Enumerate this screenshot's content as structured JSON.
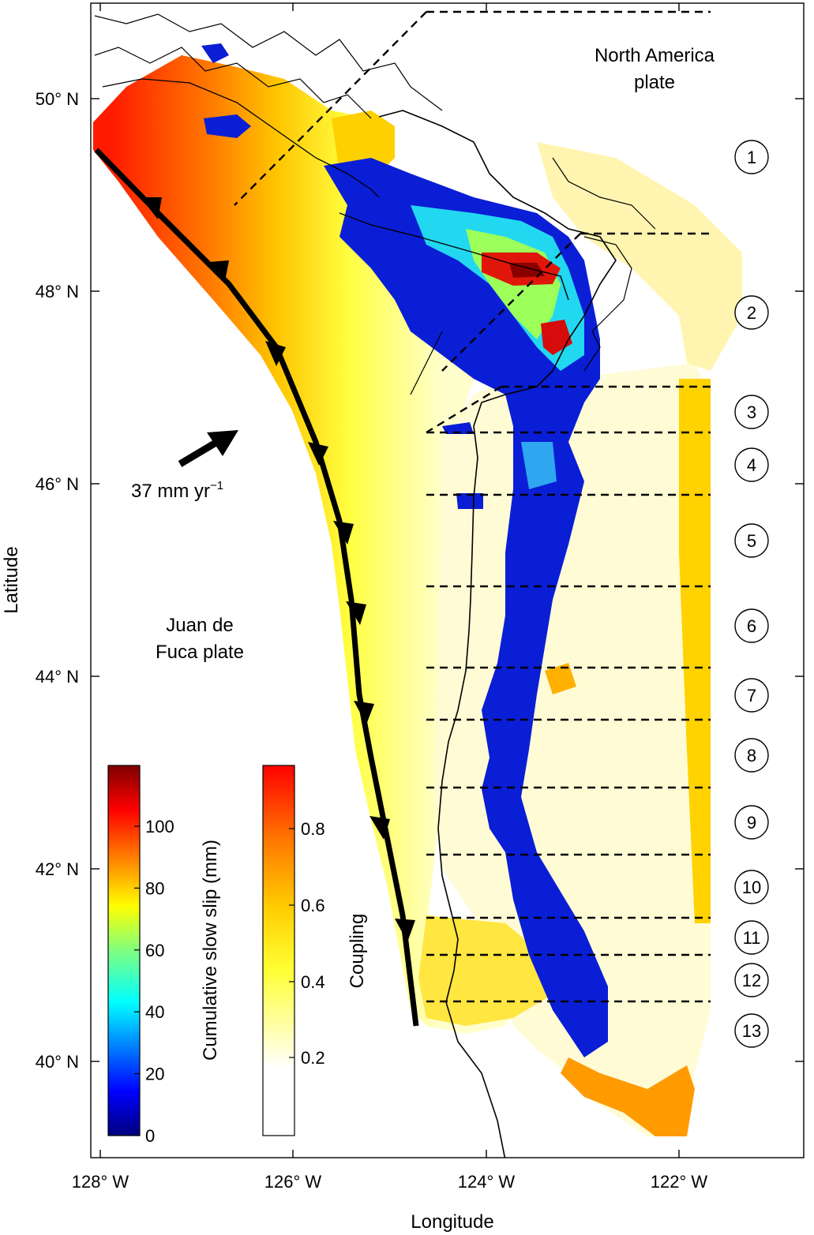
{
  "axes": {
    "x_label": "Longitude",
    "y_label": "Latitude",
    "x_ticks": [
      "128° W",
      "126° W",
      "124° W",
      "122° W"
    ],
    "y_ticks": [
      "50° N",
      "48° N",
      "46° N",
      "44° N",
      "42° N",
      "40° N"
    ]
  },
  "labels": {
    "north_america_line1": "North America",
    "north_america_line2": "plate",
    "juan_de_fuca_line1": "Juan de",
    "juan_de_fuca_line2": "Fuca plate",
    "velocity": "37 mm yr",
    "velocity_exp": "−1"
  },
  "segments": [
    "1",
    "2",
    "3",
    "4",
    "5",
    "6",
    "7",
    "8",
    "9",
    "10",
    "11",
    "12",
    "13"
  ],
  "colorbars": {
    "slip": {
      "title": "Cumulative slow slip (mm)",
      "ticks": [
        "0",
        "20",
        "40",
        "60",
        "80",
        "100"
      ],
      "colormap": "jet"
    },
    "coupling": {
      "title": "Coupling",
      "ticks": [
        "0.2",
        "0.4",
        "0.6",
        "0.8"
      ],
      "colormap": "white-yellow-red"
    }
  },
  "colors": {
    "trench": "#000000",
    "coupling_high": "#ff0000",
    "coupling_mid": "#ffff00",
    "slip_low": "#0000cc",
    "slip_high": "#7f0000"
  }
}
